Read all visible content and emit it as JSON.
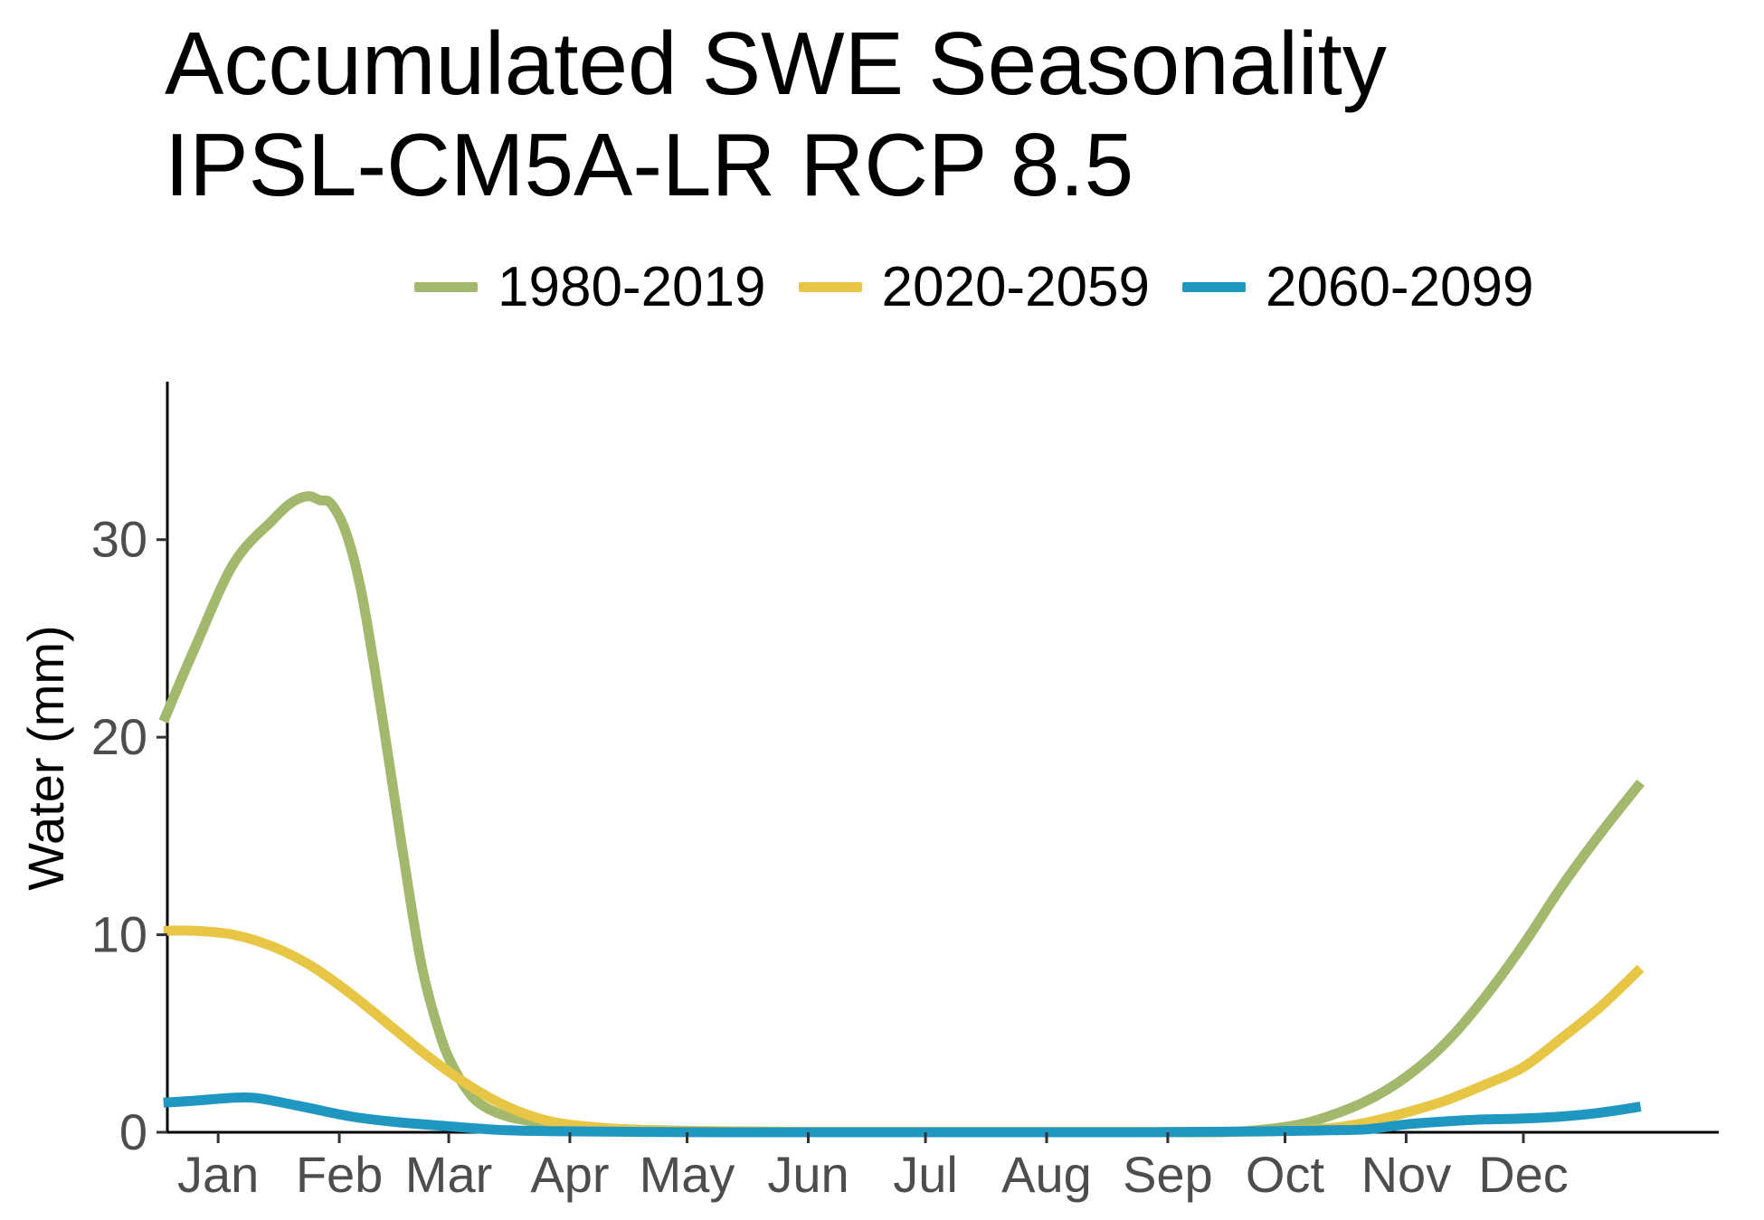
{
  "chart_data": {
    "type": "line",
    "title_line1": "Accumulated SWE Seasonality",
    "title_line2": "IPSL-CM5A-LR RCP 8.5",
    "ylabel": "Water (mm)",
    "xlabel": "",
    "ylim": [
      0,
      38
    ],
    "yticks": [
      0,
      10,
      20,
      30
    ],
    "ytick_labels": [
      "0",
      "10",
      "20",
      "30"
    ],
    "x_unit": "day of year",
    "xlim": [
      -12,
      385
    ],
    "xticks": [
      1,
      32,
      60,
      91,
      121,
      152,
      182,
      213,
      244,
      274,
      305,
      335
    ],
    "xtick_labels": [
      "Jan",
      "Feb",
      "Mar",
      "Apr",
      "May",
      "Jun",
      "Jul",
      "Aug",
      "Sep",
      "Oct",
      "Nov",
      "Dec"
    ],
    "legend_position": "top",
    "grid": false,
    "series": [
      {
        "name": "1980-2019",
        "color": "#a2b86c",
        "x": [
          -13,
          -5,
          5,
          15,
          20,
          24,
          27,
          30,
          34,
          38,
          43,
          48,
          53,
          58,
          62,
          66,
          70,
          75,
          80,
          85,
          90,
          100,
          110,
          120,
          130,
          140,
          150,
          160,
          180,
          200,
          220,
          240,
          260,
          275,
          285,
          295,
          305,
          315,
          325,
          335,
          345,
          355,
          365
        ],
        "values": [
          20.8,
          24.5,
          28.8,
          31.0,
          31.9,
          32.2,
          32.0,
          31.8,
          30.2,
          27.0,
          21.0,
          14.5,
          8.5,
          4.8,
          3.0,
          1.8,
          1.2,
          0.8,
          0.6,
          0.45,
          0.35,
          0.2,
          0.12,
          0.08,
          0.05,
          0.03,
          0.02,
          0.02,
          0.02,
          0.02,
          0.02,
          0.02,
          0.02,
          0.3,
          0.8,
          1.6,
          2.8,
          4.5,
          6.8,
          9.5,
          12.5,
          15.2,
          17.7
        ]
      },
      {
        "name": "2020-2059",
        "color": "#e8c645",
        "x": [
          -13,
          -5,
          5,
          15,
          25,
          35,
          45,
          55,
          65,
          75,
          85,
          95,
          110,
          130,
          150,
          180,
          210,
          240,
          270,
          285,
          295,
          305,
          315,
          325,
          335,
          345,
          355,
          365
        ],
        "values": [
          10.2,
          10.2,
          10.0,
          9.4,
          8.4,
          7.0,
          5.4,
          3.8,
          2.4,
          1.3,
          0.6,
          0.3,
          0.1,
          0.05,
          0.02,
          0.02,
          0.02,
          0.02,
          0.05,
          0.2,
          0.5,
          1.0,
          1.6,
          2.4,
          3.3,
          4.8,
          6.4,
          8.3
        ]
      },
      {
        "name": "2060-2099",
        "color": "#2097c0",
        "x": [
          -13,
          -5,
          5,
          10,
          15,
          25,
          35,
          45,
          60,
          75,
          90,
          110,
          130,
          160,
          200,
          240,
          270,
          285,
          295,
          305,
          315,
          325,
          335,
          345,
          355,
          365
        ],
        "values": [
          1.5,
          1.6,
          1.75,
          1.75,
          1.6,
          1.2,
          0.8,
          0.55,
          0.3,
          0.1,
          0.05,
          0.02,
          0.0,
          0.0,
          0.0,
          0.0,
          0.05,
          0.1,
          0.15,
          0.4,
          0.55,
          0.65,
          0.7,
          0.8,
          1.0,
          1.3
        ]
      }
    ]
  }
}
